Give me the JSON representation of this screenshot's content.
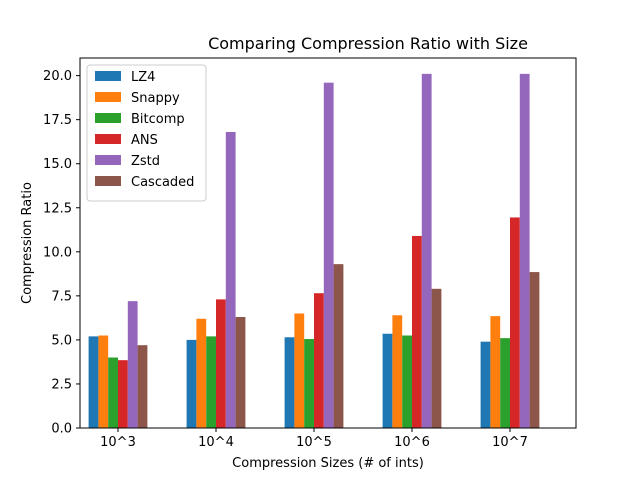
{
  "chart_data": {
    "type": "bar",
    "title": "Comparing Compression Ratio with Size",
    "xlabel": "Compression Sizes (# of ints)",
    "ylabel": "Compression Ratio",
    "categories": [
      "10^3",
      "10^4",
      "10^5",
      "10^6",
      "10^7"
    ],
    "ylim": [
      0,
      21.0
    ],
    "yticks": [
      0.0,
      2.5,
      5.0,
      7.5,
      10.0,
      12.5,
      15.0,
      17.5,
      20.0
    ],
    "ytick_labels": [
      "0.0",
      "2.5",
      "5.0",
      "7.5",
      "10.0",
      "12.5",
      "15.0",
      "17.5",
      "20.0"
    ],
    "grid": false,
    "legend": "top-left",
    "series": [
      {
        "name": "LZ4",
        "color": "#1f77b4",
        "values": [
          5.2,
          5.0,
          5.15,
          5.35,
          4.9
        ]
      },
      {
        "name": "Snappy",
        "color": "#ff7f0e",
        "values": [
          5.25,
          6.2,
          6.5,
          6.4,
          6.35
        ]
      },
      {
        "name": "Bitcomp",
        "color": "#2ca02c",
        "values": [
          4.0,
          5.2,
          5.05,
          5.25,
          5.1
        ]
      },
      {
        "name": "ANS",
        "color": "#d62728",
        "values": [
          3.85,
          7.3,
          7.65,
          10.9,
          11.95
        ]
      },
      {
        "name": "Zstd",
        "color": "#9467bd",
        "values": [
          7.2,
          16.8,
          19.6,
          20.1,
          20.1
        ]
      },
      {
        "name": "Cascaded",
        "color": "#8c564b",
        "values": [
          4.7,
          6.3,
          9.3,
          7.9,
          8.85
        ]
      }
    ]
  }
}
